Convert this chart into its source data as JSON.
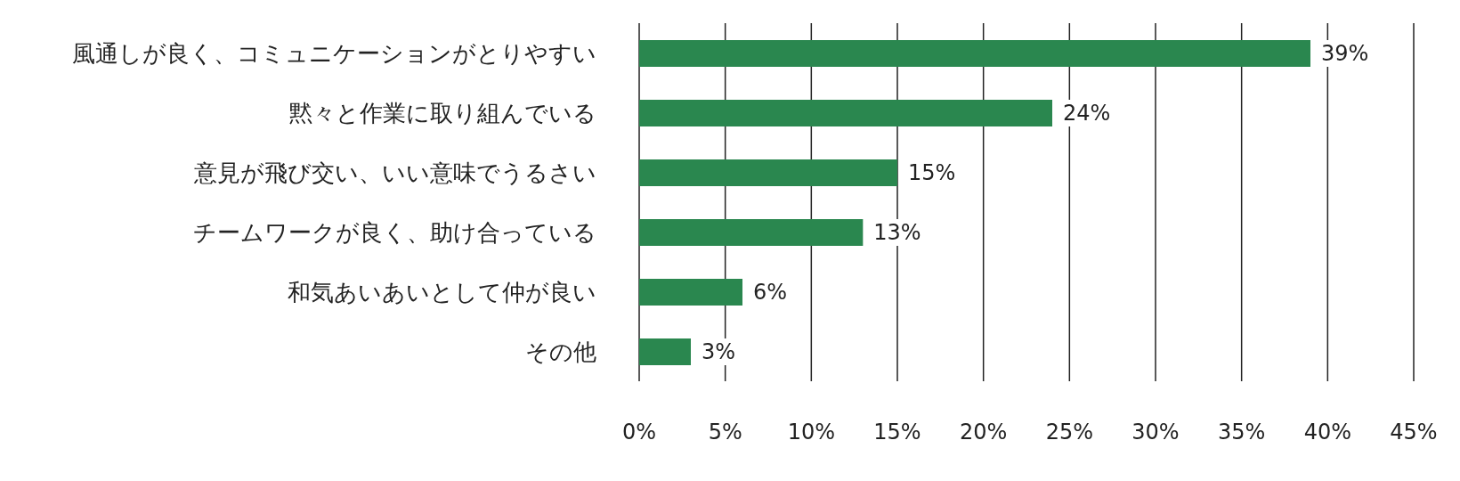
{
  "chart_data": {
    "type": "bar",
    "orientation": "horizontal",
    "categories": [
      "風通しが良く、コミュニケーションがとりやすい",
      "黙々と作業に取り組んでいる",
      "意見が飛び交い、いい意味でうるさい",
      "チームワークが良く、助け合っている",
      "和気あいあいとして仲が良い",
      "その他"
    ],
    "values": [
      39,
      24,
      15,
      13,
      6,
      3
    ],
    "color": "#2a874f",
    "value_labels": [
      "39%",
      "24%",
      "15%",
      "13%",
      "6%",
      "3%"
    ],
    "xlim": [
      0,
      45
    ],
    "xticks": [
      {
        "value": 0,
        "label": "0%"
      },
      {
        "value": 5,
        "label": "5%"
      },
      {
        "value": 10,
        "label": "10%"
      },
      {
        "value": 15,
        "label": "15%"
      },
      {
        "value": 20,
        "label": "20%"
      },
      {
        "value": 25,
        "label": "25%"
      },
      {
        "value": 30,
        "label": "30%"
      },
      {
        "value": 35,
        "label": "35%"
      },
      {
        "value": 40,
        "label": "40%"
      },
      {
        "value": 45,
        "label": "45%"
      }
    ],
    "grid": "x",
    "legend": false
  }
}
